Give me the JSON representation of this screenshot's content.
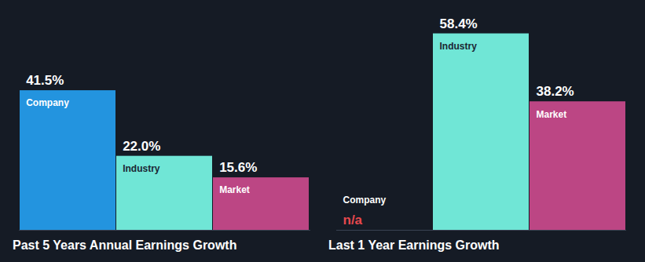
{
  "chart_data": [
    {
      "type": "bar",
      "title": "Past 5 Years Annual Earnings Growth",
      "categories": [
        "Company",
        "Industry",
        "Market"
      ],
      "values": [
        41.5,
        22.0,
        15.6
      ],
      "value_labels": [
        "41.5%",
        "22.0%",
        "15.6%"
      ],
      "colors": [
        "#2394df",
        "#70e6d6",
        "#bc4684"
      ],
      "data_labels": true,
      "tick_labels": false
    },
    {
      "type": "bar",
      "title": "Last 1 Year Earnings Growth",
      "categories": [
        "Company",
        "Industry",
        "Market"
      ],
      "values": [
        null,
        58.4,
        38.2
      ],
      "value_labels": [
        "n/a",
        "58.4%",
        "38.2%"
      ],
      "colors": [
        "#2394df",
        "#70e6d6",
        "#bc4684"
      ],
      "data_labels": true,
      "tick_labels": false
    }
  ]
}
